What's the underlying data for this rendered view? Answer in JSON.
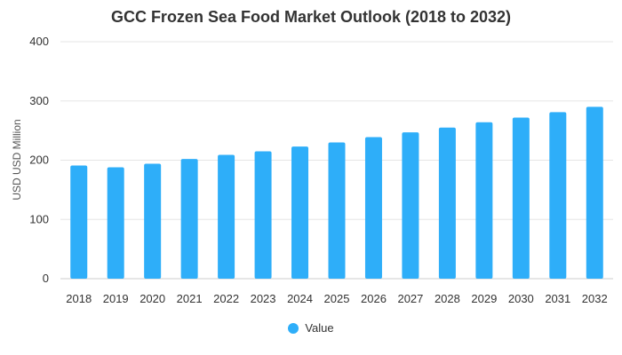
{
  "chart_data": {
    "type": "bar",
    "title": "GCC Frozen Sea Food Market Outlook (2018 to 2032)",
    "xlabel": "",
    "ylabel": "USD USD Million",
    "categories": [
      "2018",
      "2019",
      "2020",
      "2021",
      "2022",
      "2023",
      "2024",
      "2025",
      "2026",
      "2027",
      "2028",
      "2029",
      "2030",
      "2031",
      "2032"
    ],
    "series": [
      {
        "name": "Value",
        "color": "#2eaef9",
        "values": [
          191,
          188,
          194,
          202,
          209,
          215,
          223,
          230,
          239,
          247,
          255,
          264,
          272,
          281,
          290
        ]
      }
    ],
    "ylim": [
      0,
      400
    ],
    "yticks": [
      0,
      100,
      200,
      300,
      400
    ],
    "grid": true,
    "legend_position": "bottom"
  }
}
